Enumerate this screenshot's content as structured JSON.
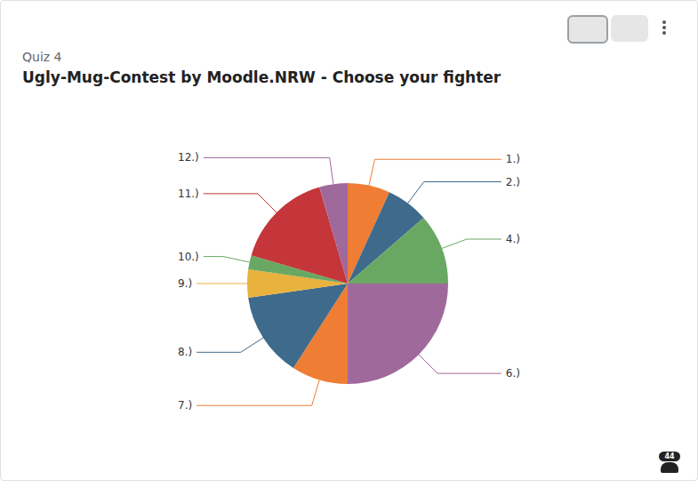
{
  "chart_data": {
    "type": "pie",
    "subtitle": "Quiz 4",
    "title": "Ugly-Mug-Contest by Moodle.NRW - Choose your fighter",
    "categories": [
      "1.)",
      "2.)",
      "4.)",
      "6.)",
      "7.)",
      "8.)",
      "9.)",
      "10.)",
      "11.)",
      "12.)"
    ],
    "values": [
      3,
      3,
      5,
      11,
      4,
      6,
      2,
      1,
      7,
      2
    ],
    "colors": [
      "#ef7d33",
      "#3e6a8c",
      "#69a862",
      "#a0699c",
      "#ef7d33",
      "#3e6a8c",
      "#e9b13e",
      "#69a862",
      "#c4363a",
      "#a0699c"
    ],
    "participants": 44
  }
}
